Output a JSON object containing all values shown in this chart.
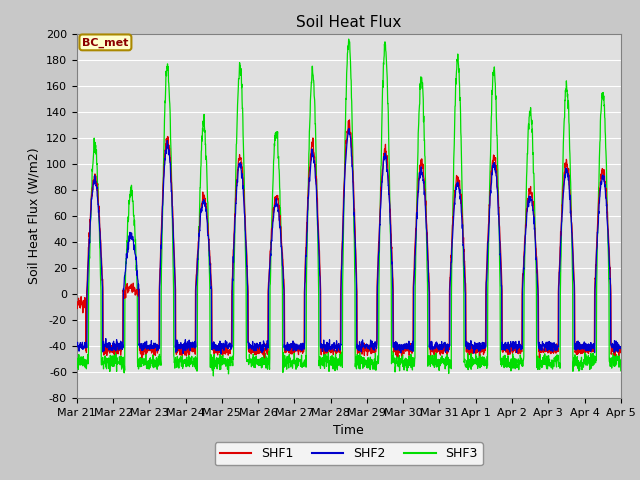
{
  "title": "Soil Heat Flux",
  "xlabel": "Time",
  "ylabel": "Soil Heat Flux (W/m2)",
  "ylim": [
    -80,
    200
  ],
  "yticks": [
    -80,
    -60,
    -40,
    -20,
    0,
    20,
    40,
    60,
    80,
    100,
    120,
    140,
    160,
    180,
    200
  ],
  "xtick_labels": [
    "Mar 21",
    "Mar 22",
    "Mar 23",
    "Mar 24",
    "Mar 25",
    "Mar 26",
    "Mar 27",
    "Mar 28",
    "Mar 29",
    "Mar 30",
    "Mar 31",
    "Apr 1",
    "Apr 2",
    "Apr 3",
    "Apr 4",
    "Apr 5"
  ],
  "legend_labels": [
    "SHF1",
    "SHF2",
    "SHF3"
  ],
  "line_colors": [
    "#dd0000",
    "#0000cc",
    "#00dd00"
  ],
  "bg_color": "#c8c8c8",
  "plot_bg_color": "#e0e0e0",
  "annotation_text": "BC_met",
  "annotation_bg": "#ffffcc",
  "annotation_border": "#aa8800",
  "grid_color": "#ffffff",
  "title_fontsize": 11,
  "axis_fontsize": 8,
  "ylabel_fontsize": 9
}
